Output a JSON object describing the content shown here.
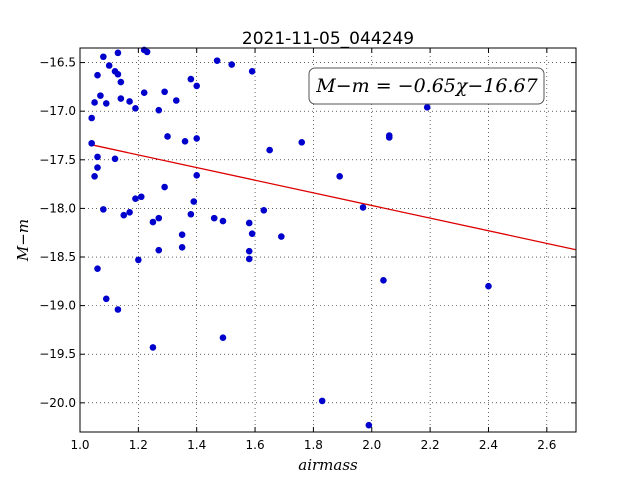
{
  "chart_data": {
    "type": "scatter",
    "title": "2021-11-05_044249",
    "xlabel": "airmass",
    "ylabel": "M−m",
    "xlim": [
      1.0,
      2.7
    ],
    "ylim": [
      -20.3,
      -16.35
    ],
    "xticks": [
      1.0,
      1.2,
      1.4,
      1.6,
      1.8,
      2.0,
      2.2,
      2.4,
      2.6
    ],
    "xtick_labels": [
      "1.0",
      "1.2",
      "1.4",
      "1.6",
      "1.8",
      "2.0",
      "2.2",
      "2.4",
      "2.6"
    ],
    "yticks": [
      -16.5,
      -17.0,
      -17.5,
      -18.0,
      -18.5,
      -19.0,
      -19.5,
      -20.0
    ],
    "ytick_labels": [
      "−16.5",
      "−17.0",
      "−17.5",
      "−18.0",
      "−18.5",
      "−19.0",
      "−19.5",
      "−20.0"
    ],
    "grid": true,
    "point_color": "#0000cc",
    "fit_color": "#dd0000",
    "fit": {
      "slope": -0.65,
      "intercept": -16.67,
      "x_range": [
        1.03,
        2.7
      ]
    },
    "annotation": "M−m = −0.65χ−16.67",
    "points": [
      [
        1.22,
        -16.37
      ],
      [
        1.23,
        -16.39
      ],
      [
        1.13,
        -16.4
      ],
      [
        1.08,
        -16.44
      ],
      [
        1.47,
        -16.48
      ],
      [
        1.52,
        -16.52
      ],
      [
        1.1,
        -16.53
      ],
      [
        1.12,
        -16.59
      ],
      [
        1.59,
        -16.59
      ],
      [
        1.13,
        -16.62
      ],
      [
        1.06,
        -16.63
      ],
      [
        1.38,
        -16.67
      ],
      [
        1.14,
        -16.7
      ],
      [
        1.4,
        -16.74
      ],
      [
        1.29,
        -16.8
      ],
      [
        1.22,
        -16.81
      ],
      [
        1.07,
        -16.84
      ],
      [
        1.14,
        -16.87
      ],
      [
        1.33,
        -16.89
      ],
      [
        1.17,
        -16.9
      ],
      [
        1.05,
        -16.91
      ],
      [
        1.09,
        -16.92
      ],
      [
        1.19,
        -16.97
      ],
      [
        1.27,
        -16.99
      ],
      [
        2.19,
        -16.96
      ],
      [
        1.04,
        -17.07
      ],
      [
        2.06,
        -17.25
      ],
      [
        1.3,
        -17.26
      ],
      [
        2.06,
        -17.27
      ],
      [
        1.4,
        -17.28
      ],
      [
        1.36,
        -17.31
      ],
      [
        1.76,
        -17.32
      ],
      [
        1.04,
        -17.33
      ],
      [
        1.65,
        -17.4
      ],
      [
        1.06,
        -17.47
      ],
      [
        1.12,
        -17.49
      ],
      [
        1.06,
        -17.58
      ],
      [
        1.05,
        -17.67
      ],
      [
        1.89,
        -17.67
      ],
      [
        1.4,
        -17.66
      ],
      [
        1.29,
        -17.78
      ],
      [
        1.21,
        -17.88
      ],
      [
        1.19,
        -17.9
      ],
      [
        1.39,
        -17.93
      ],
      [
        1.97,
        -17.99
      ],
      [
        1.08,
        -18.01
      ],
      [
        1.63,
        -18.02
      ],
      [
        1.17,
        -18.04
      ],
      [
        1.38,
        -18.06
      ],
      [
        1.15,
        -18.07
      ],
      [
        1.27,
        -18.1
      ],
      [
        1.46,
        -18.1
      ],
      [
        1.49,
        -18.13
      ],
      [
        1.25,
        -18.14
      ],
      [
        1.58,
        -18.15
      ],
      [
        1.59,
        -18.26
      ],
      [
        1.35,
        -18.27
      ],
      [
        1.69,
        -18.29
      ],
      [
        1.35,
        -18.4
      ],
      [
        1.27,
        -18.43
      ],
      [
        1.58,
        -18.44
      ],
      [
        1.2,
        -18.53
      ],
      [
        1.58,
        -18.52
      ],
      [
        1.06,
        -18.62
      ],
      [
        2.04,
        -18.74
      ],
      [
        2.4,
        -18.8
      ],
      [
        1.09,
        -18.93
      ],
      [
        1.13,
        -19.04
      ],
      [
        1.49,
        -19.33
      ],
      [
        1.25,
        -19.43
      ],
      [
        1.83,
        -19.98
      ],
      [
        1.99,
        -20.23
      ]
    ]
  }
}
